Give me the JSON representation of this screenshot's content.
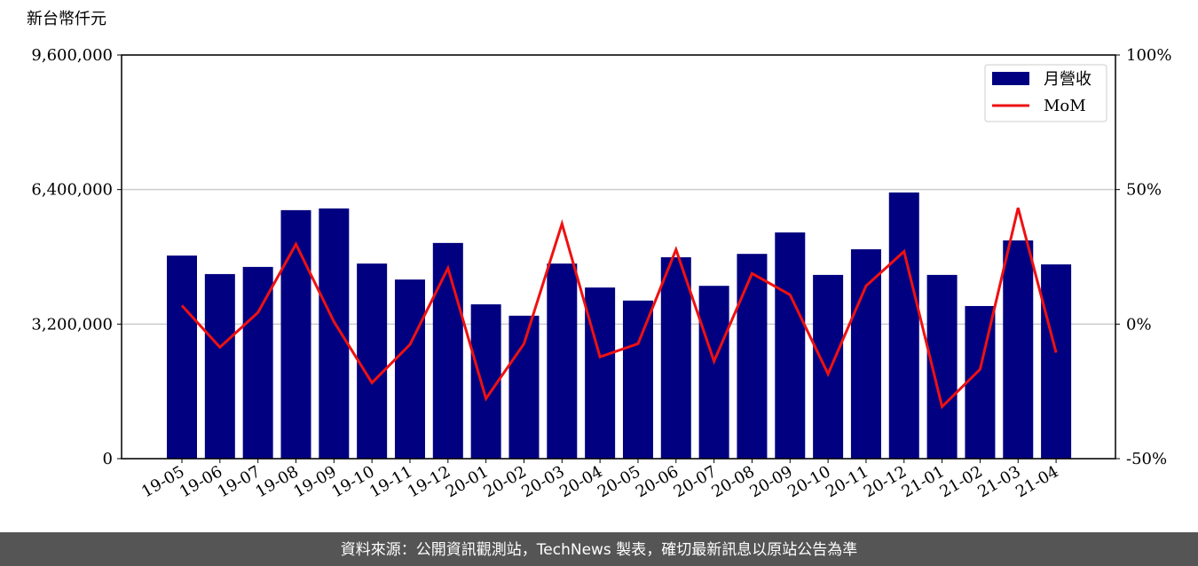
{
  "chart_data": {
    "type": "bar-line",
    "unit_label": "新台幣仟元",
    "categories": [
      "19-05",
      "19-06",
      "19-07",
      "19-08",
      "19-09",
      "19-10",
      "19-11",
      "19-12",
      "20-01",
      "20-02",
      "20-03",
      "20-04",
      "20-05",
      "20-06",
      "20-07",
      "20-08",
      "20-09",
      "20-10",
      "20-11",
      "20-12",
      "21-01",
      "21-02",
      "21-03",
      "21-04"
    ],
    "series": [
      {
        "name": "月營收",
        "type": "bar",
        "color": "#000080",
        "values": [
          4830000,
          4390000,
          4560000,
          5910000,
          5950000,
          4640000,
          4260000,
          5130000,
          3670000,
          3400000,
          4640000,
          4070000,
          3760000,
          4790000,
          4110000,
          4870000,
          5380000,
          4370000,
          4980000,
          6330000,
          4370000,
          3630000,
          5190000,
          4620000
        ]
      },
      {
        "name": "MoM",
        "type": "line",
        "axis": "y2",
        "color": "#ee1111",
        "values": [
          6.9,
          -8.6,
          4.3,
          29.7,
          0.9,
          -21.8,
          -7.6,
          20.8,
          -27.7,
          -7.3,
          37.3,
          -12.2,
          -7.3,
          27.7,
          -13.8,
          18.8,
          10.9,
          -18.5,
          14.2,
          27.0,
          -30.7,
          -16.8,
          43.2,
          -10.6
        ]
      }
    ],
    "ylim": [
      0,
      9600000
    ],
    "yticks": [
      0,
      {
        "value": 3200000,
        "label": "3,200,000"
      },
      {
        "value": 6400000,
        "label": "6,400,000"
      },
      {
        "value": 9600000,
        "label": "9,600,000"
      }
    ],
    "y2lim": [
      -50,
      100
    ],
    "y2ticks": [
      {
        "value": -50,
        "label": "-50%"
      },
      {
        "value": 0,
        "label": "0%"
      },
      {
        "value": 50,
        "label": "50%"
      },
      {
        "value": 100,
        "label": "100%"
      }
    ],
    "grid": true,
    "legend": "upper right",
    "footer": "資料來源：公開資訊觀測站，TechNews 製表，確切最新訊息以原站公告為準"
  }
}
